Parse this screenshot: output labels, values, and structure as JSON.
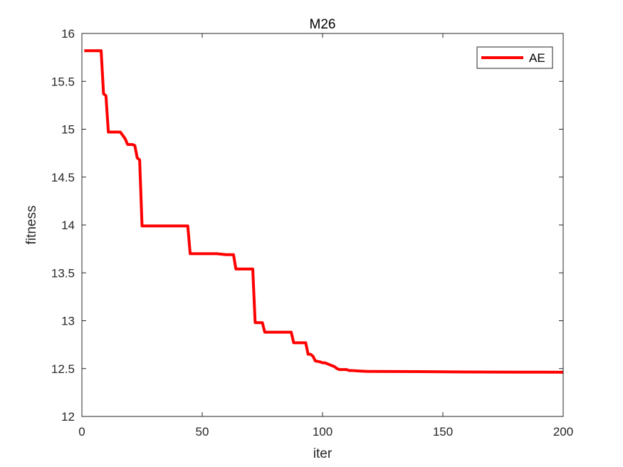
{
  "chart_data": {
    "type": "line",
    "title": "M26",
    "xlabel": "iter",
    "ylabel": "fitness",
    "xlim": [
      0,
      200
    ],
    "ylim": [
      12,
      16
    ],
    "xticks": [
      0,
      50,
      100,
      150,
      200
    ],
    "yticks": [
      12,
      12.5,
      13,
      13.5,
      14,
      14.5,
      15,
      15.5,
      16
    ],
    "xtick_labels": [
      "0",
      "50",
      "100",
      "150",
      "200"
    ],
    "ytick_labels": [
      "12",
      "12.5",
      "13",
      "13.5",
      "14",
      "14.5",
      "15",
      "15.5",
      "16"
    ],
    "grid": false,
    "box": true,
    "legend_position": "top-right",
    "series": [
      {
        "name": "AE",
        "color": "#ff0000",
        "x": [
          1,
          8,
          9,
          10,
          11,
          16,
          18,
          19,
          21,
          22,
          23,
          24,
          25,
          44,
          45,
          56,
          60,
          61,
          63,
          64,
          71,
          72,
          75,
          76,
          87,
          88,
          93,
          94,
          95,
          96,
          97,
          99,
          100,
          101,
          102,
          103,
          104,
          105,
          106,
          107,
          108,
          109,
          110,
          111,
          112,
          115,
          119,
          120,
          140,
          160,
          180,
          200
        ],
        "y": [
          15.82,
          15.82,
          15.37,
          15.35,
          14.97,
          14.97,
          14.9,
          14.84,
          14.84,
          14.83,
          14.7,
          14.68,
          13.99,
          13.99,
          13.7,
          13.7,
          13.69,
          13.69,
          13.69,
          13.54,
          13.54,
          12.98,
          12.98,
          12.88,
          12.88,
          12.77,
          12.77,
          12.65,
          12.65,
          12.63,
          12.58,
          12.57,
          12.56,
          12.56,
          12.55,
          12.54,
          12.53,
          12.52,
          12.5,
          12.49,
          12.49,
          12.49,
          12.49,
          12.48,
          12.48,
          12.475,
          12.47,
          12.47,
          12.468,
          12.465,
          12.463,
          12.462
        ]
      }
    ]
  }
}
